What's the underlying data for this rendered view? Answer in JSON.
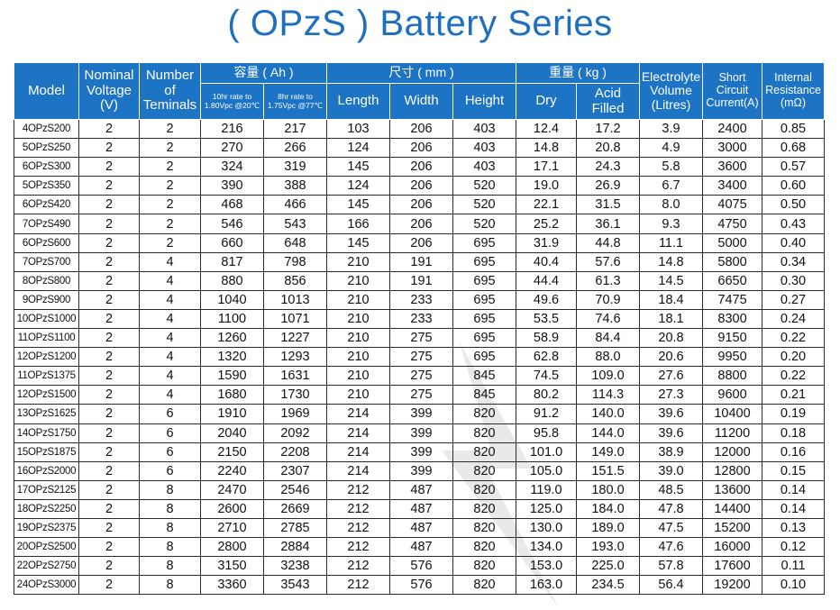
{
  "title": "( OPzS ) Battery Series",
  "header": {
    "model": "Model",
    "nominal_voltage": "Nominal Voltage (V)",
    "number_of_terminals": "Number of Teminals",
    "capacity": "容量 ( Ah )",
    "capacity_10hr": "10hr rate to 1.80Vpc @20℃",
    "capacity_8hr": "8hr rate to 1.75Vpc @77℃",
    "dimensions": "尺寸 ( mm )",
    "length": "Length",
    "width": "Width",
    "height": "Height",
    "weight": "重量 ( kg )",
    "dry": "Dry",
    "acid_filled": "Acid Filled",
    "electrolyte_volume": "Electrolyte Volume (Litres)",
    "short_circuit_current": "Short Circuit Current(A)",
    "internal_resistance": "Internal Resistance (mΩ)"
  },
  "rows": [
    [
      "4OPzS200",
      "2",
      "2",
      "216",
      "217",
      "103",
      "206",
      "403",
      "12.4",
      "17.2",
      "3.9",
      "2400",
      "0.85"
    ],
    [
      "5OPzS250",
      "2",
      "2",
      "270",
      "266",
      "124",
      "206",
      "403",
      "14.8",
      "20.8",
      "4.9",
      "3000",
      "0.68"
    ],
    [
      "6OPzS300",
      "2",
      "2",
      "324",
      "319",
      "145",
      "206",
      "403",
      "17.1",
      "24.3",
      "5.8",
      "3600",
      "0.57"
    ],
    [
      "5OPzS350",
      "2",
      "2",
      "390",
      "388",
      "124",
      "206",
      "520",
      "19.0",
      "26.9",
      "6.7",
      "3400",
      "0.60"
    ],
    [
      "6OPzS420",
      "2",
      "2",
      "468",
      "466",
      "145",
      "206",
      "520",
      "22.1",
      "31.5",
      "8.0",
      "4075",
      "0.50"
    ],
    [
      "7OPzS490",
      "2",
      "2",
      "546",
      "543",
      "166",
      "206",
      "520",
      "25.2",
      "36.1",
      "9.3",
      "4750",
      "0.43"
    ],
    [
      "6OPzS600",
      "2",
      "2",
      "660",
      "648",
      "145",
      "206",
      "695",
      "31.9",
      "44.8",
      "11.1",
      "5000",
      "0.40"
    ],
    [
      "7OPzS700",
      "2",
      "4",
      "817",
      "798",
      "210",
      "191",
      "695",
      "40.4",
      "57.6",
      "14.8",
      "5800",
      "0.34"
    ],
    [
      "8OPzS800",
      "2",
      "4",
      "880",
      "856",
      "210",
      "191",
      "695",
      "44.4",
      "61.3",
      "14.5",
      "6650",
      "0.30"
    ],
    [
      "9OPzS900",
      "2",
      "4",
      "1040",
      "1013",
      "210",
      "233",
      "695",
      "49.6",
      "70.9",
      "18.4",
      "7475",
      "0.27"
    ],
    [
      "10OPzS1000",
      "2",
      "4",
      "1100",
      "1071",
      "210",
      "233",
      "695",
      "53.5",
      "74.6",
      "18.1",
      "8300",
      "0.24"
    ],
    [
      "11OPzS1100",
      "2",
      "4",
      "1260",
      "1227",
      "210",
      "275",
      "695",
      "58.9",
      "84.4",
      "20.8",
      "9150",
      "0.22"
    ],
    [
      "12OPzS1200",
      "2",
      "4",
      "1320",
      "1293",
      "210",
      "275",
      "695",
      "62.8",
      "88.0",
      "20.6",
      "9950",
      "0.20"
    ],
    [
      "11OPzS1375",
      "2",
      "4",
      "1590",
      "1631",
      "210",
      "275",
      "845",
      "74.5",
      "109.0",
      "27.6",
      "8800",
      "0.22"
    ],
    [
      "12OPzS1500",
      "2",
      "4",
      "1680",
      "1730",
      "210",
      "275",
      "845",
      "80.2",
      "114.3",
      "27.3",
      "9600",
      "0.21"
    ],
    [
      "13OPzS1625",
      "2",
      "6",
      "1910",
      "1969",
      "214",
      "399",
      "820",
      "91.2",
      "140.0",
      "39.6",
      "10400",
      "0.19"
    ],
    [
      "14OPzS1750",
      "2",
      "6",
      "2040",
      "2092",
      "214",
      "399",
      "820",
      "95.8",
      "144.0",
      "39.6",
      "11200",
      "0.18"
    ],
    [
      "15OPzS1875",
      "2",
      "6",
      "2150",
      "2208",
      "214",
      "399",
      "820",
      "101.0",
      "149.0",
      "38.9",
      "12000",
      "0.16"
    ],
    [
      "16OPzS2000",
      "2",
      "6",
      "2240",
      "2307",
      "214",
      "399",
      "820",
      "105.0",
      "151.5",
      "39.0",
      "12800",
      "0.15"
    ],
    [
      "17OPzS2125",
      "2",
      "8",
      "2470",
      "2546",
      "212",
      "487",
      "820",
      "119.0",
      "180.0",
      "48.5",
      "13600",
      "0.14"
    ],
    [
      "18OPzS2250",
      "2",
      "8",
      "2600",
      "2669",
      "212",
      "487",
      "820",
      "125.0",
      "184.0",
      "47.8",
      "14400",
      "0.14"
    ],
    [
      "19OPzS2375",
      "2",
      "8",
      "2710",
      "2785",
      "212",
      "487",
      "820",
      "130.0",
      "189.0",
      "47.5",
      "15200",
      "0.13"
    ],
    [
      "20OPzS2500",
      "2",
      "8",
      "2800",
      "2884",
      "212",
      "487",
      "820",
      "134.0",
      "193.0",
      "47.6",
      "16000",
      "0.12"
    ],
    [
      "22OPzS2750",
      "2",
      "8",
      "3150",
      "3238",
      "212",
      "576",
      "820",
      "153.0",
      "225.0",
      "57.8",
      "17600",
      "0.11"
    ],
    [
      "24OPzS3000",
      "2",
      "8",
      "3360",
      "3543",
      "212",
      "576",
      "820",
      "163.0",
      "234.5",
      "56.4",
      "19200",
      "0.10"
    ]
  ],
  "colors": {
    "header_bg": "#1d73c4",
    "title": "#1f6fbf"
  }
}
